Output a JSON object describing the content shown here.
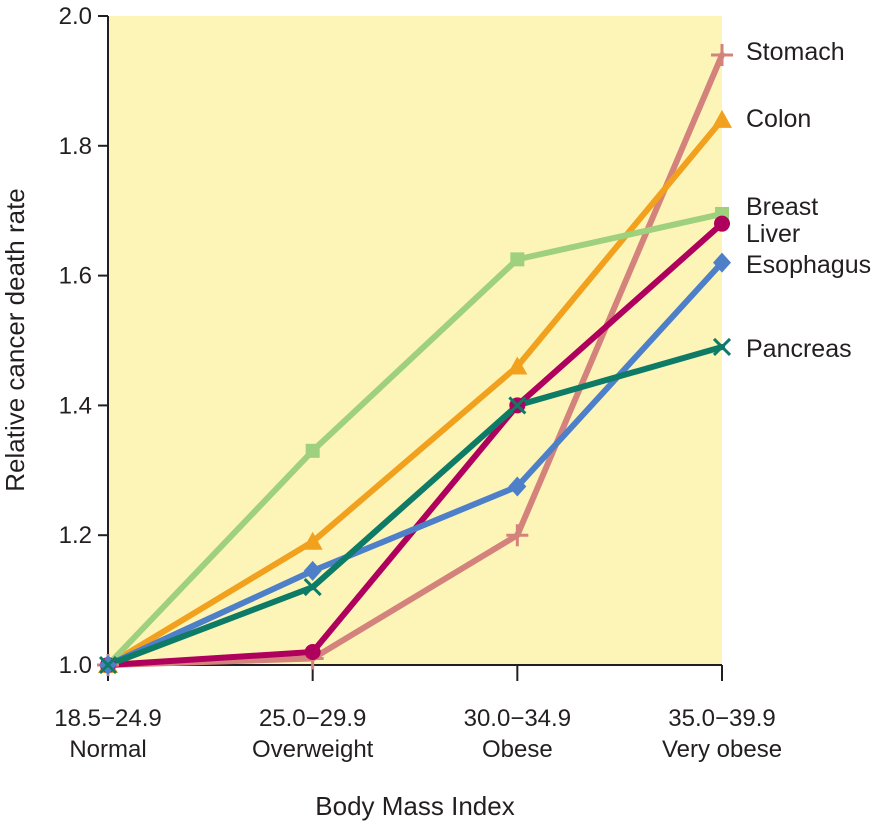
{
  "chart_data": {
    "type": "line",
    "title": "",
    "xlabel": "Body Mass Index",
    "ylabel": "Relative cancer death rate",
    "categories": [
      {
        "range": "18.5−24.9",
        "label": "Normal"
      },
      {
        "range": "25.0−29.9",
        "label": "Overweight"
      },
      {
        "range": "30.0−34.9",
        "label": "Obese"
      },
      {
        "range": "35.0−39.9",
        "label": "Very obese"
      }
    ],
    "ylim": [
      1.0,
      2.0
    ],
    "yticks": [
      "1.0",
      "1.2",
      "1.4",
      "1.6",
      "1.8",
      "2.0"
    ],
    "grid": false,
    "plot_background": "#fdf5b8",
    "legend_placement": "right, at series ends",
    "series": [
      {
        "name": "Stomach",
        "values": [
          1.0,
          1.01,
          1.2,
          1.94
        ],
        "color": "#d4837c",
        "marker": "plus",
        "width": 6
      },
      {
        "name": "Colon",
        "values": [
          1.0,
          1.19,
          1.46,
          1.84
        ],
        "color": "#f2a11e",
        "marker": "triangle",
        "width": 6
      },
      {
        "name": "Breast",
        "values": [
          1.0,
          1.33,
          1.625,
          1.695
        ],
        "color": "#9ed07d",
        "marker": "square",
        "width": 6
      },
      {
        "name": "Liver",
        "values": [
          1.0,
          1.02,
          1.4,
          1.68
        ],
        "color": "#b0005d",
        "marker": "circle",
        "width": 6
      },
      {
        "name": "Esophagus",
        "values": [
          1.0,
          1.145,
          1.275,
          1.62
        ],
        "color": "#4e7fc9",
        "marker": "diamond",
        "width": 6
      },
      {
        "name": "Pancreas",
        "values": [
          1.0,
          1.12,
          1.4,
          1.49
        ],
        "color": "#0d7b66",
        "marker": "x",
        "width": 6
      }
    ]
  }
}
